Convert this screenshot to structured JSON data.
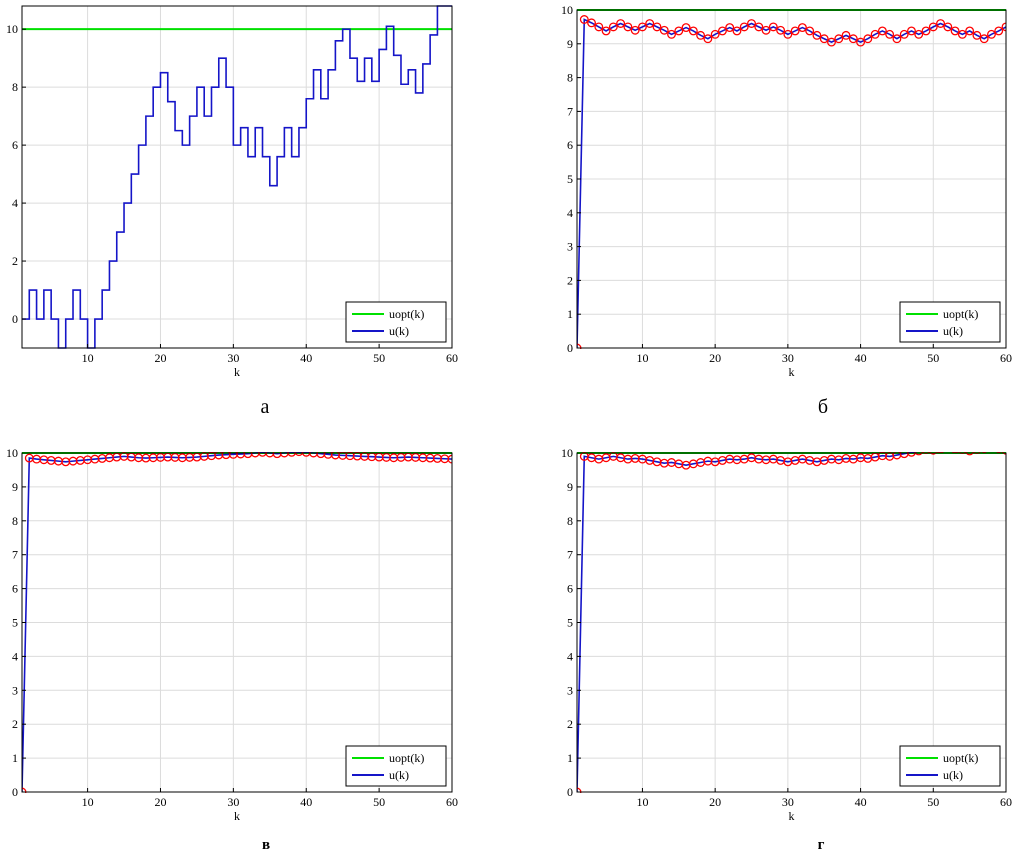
{
  "chart_data": [
    {
      "type": "line",
      "caption": "а",
      "xlabel": "k",
      "ylabel": "",
      "xlim": [
        1,
        60
      ],
      "ylim": [
        -1,
        10.8
      ],
      "xticks": [
        10,
        20,
        30,
        40,
        50,
        60
      ],
      "yticks": [
        0,
        2,
        4,
        6,
        8,
        10
      ],
      "grid": true,
      "legend_position": "bottom-right",
      "legend": [
        "uopt(k)",
        "u(k)"
      ],
      "series": [
        {
          "name": "uopt(k)",
          "color": "#00e000",
          "style": "line",
          "y": [
            10,
            10
          ],
          "x": [
            1,
            60
          ]
        },
        {
          "name": "u(k)",
          "color": "#1515c8",
          "style": "stairs",
          "x": [
            1,
            2,
            3,
            4,
            5,
            6,
            7,
            8,
            9,
            10,
            11,
            12,
            13,
            14,
            15,
            16,
            17,
            18,
            19,
            20,
            21,
            22,
            23,
            24,
            25,
            26,
            27,
            28,
            29,
            30,
            31,
            32,
            33,
            34,
            35,
            36,
            37,
            38,
            39,
            40,
            41,
            42,
            43,
            44,
            45,
            46,
            47,
            48,
            49,
            50,
            51,
            52,
            53,
            54,
            55,
            56,
            57,
            58,
            59,
            60
          ],
          "y": [
            0,
            1,
            0,
            1,
            0,
            -1,
            0,
            1,
            0,
            -1,
            0,
            1,
            2,
            3,
            4,
            5,
            6,
            7,
            8,
            8.5,
            7.5,
            6.5,
            6,
            7,
            8,
            7,
            8,
            9,
            8,
            6,
            6.6,
            5.6,
            6.6,
            5.6,
            4.6,
            5.6,
            6.6,
            5.6,
            6.6,
            7.6,
            8.6,
            7.6,
            8.6,
            9.6,
            10,
            9,
            8.2,
            9,
            8.2,
            9.3,
            10.1,
            9.1,
            8.1,
            8.6,
            7.8,
            8.8,
            9.8,
            10.8,
            10.8,
            10.8
          ]
        }
      ]
    },
    {
      "type": "line",
      "caption": "б",
      "xlabel": "k",
      "ylabel": "",
      "xlim": [
        1,
        60
      ],
      "ylim": [
        0,
        10
      ],
      "xticks": [
        10,
        20,
        30,
        40,
        50,
        60
      ],
      "yticks": [
        0,
        1,
        2,
        3,
        4,
        5,
        6,
        7,
        8,
        9,
        10
      ],
      "grid": true,
      "legend_position": "bottom-right",
      "legend": [
        "uopt(k)",
        "u(k)"
      ],
      "series": [
        {
          "name": "uopt(k)",
          "color": "#00e000",
          "style": "line",
          "x": [
            1,
            60
          ],
          "y": [
            10,
            10
          ]
        },
        {
          "name": "u(k)",
          "color": "#1515c8",
          "style": "line",
          "markers": "circle",
          "marker_color": "#ff0000",
          "x": [
            1,
            2,
            3,
            4,
            5,
            6,
            7,
            8,
            9,
            10,
            11,
            12,
            13,
            14,
            15,
            16,
            17,
            18,
            19,
            20,
            21,
            22,
            23,
            24,
            25,
            26,
            27,
            28,
            29,
            30,
            31,
            32,
            33,
            34,
            35,
            36,
            37,
            38,
            39,
            40,
            41,
            42,
            43,
            44,
            45,
            46,
            47,
            48,
            49,
            50,
            51,
            52,
            53,
            54,
            55,
            56,
            57,
            58,
            59,
            60
          ],
          "y": [
            0,
            9.72,
            9.62,
            9.5,
            9.38,
            9.5,
            9.6,
            9.5,
            9.4,
            9.5,
            9.6,
            9.5,
            9.4,
            9.28,
            9.38,
            9.48,
            9.38,
            9.25,
            9.15,
            9.28,
            9.38,
            9.48,
            9.38,
            9.5,
            9.6,
            9.5,
            9.4,
            9.5,
            9.4,
            9.28,
            9.38,
            9.48,
            9.38,
            9.25,
            9.15,
            9.05,
            9.15,
            9.25,
            9.15,
            9.05,
            9.15,
            9.28,
            9.38,
            9.28,
            9.15,
            9.28,
            9.38,
            9.28,
            9.38,
            9.5,
            9.6,
            9.5,
            9.38,
            9.28,
            9.38,
            9.25,
            9.15,
            9.28,
            9.38,
            9.5
          ]
        }
      ]
    },
    {
      "type": "line",
      "caption": "в",
      "xlabel": "k",
      "ylabel": "",
      "xlim": [
        1,
        60
      ],
      "ylim": [
        0,
        10
      ],
      "xticks": [
        10,
        20,
        30,
        40,
        50,
        60
      ],
      "yticks": [
        0,
        1,
        2,
        3,
        4,
        5,
        6,
        7,
        8,
        9,
        10
      ],
      "grid": true,
      "legend_position": "bottom-right",
      "legend": [
        "uopt(k)",
        "u(k)"
      ],
      "series": [
        {
          "name": "uopt(k)",
          "color": "#00e000",
          "style": "line",
          "x": [
            1,
            60
          ],
          "y": [
            10,
            10
          ]
        },
        {
          "name": "u(k)",
          "color": "#1515c8",
          "style": "line",
          "markers": "circle",
          "marker_color": "#ff0000",
          "x": [
            1,
            2,
            3,
            4,
            5,
            6,
            7,
            8,
            9,
            10,
            11,
            12,
            13,
            14,
            15,
            16,
            17,
            18,
            19,
            20,
            21,
            22,
            23,
            24,
            25,
            26,
            27,
            28,
            29,
            30,
            31,
            32,
            33,
            34,
            35,
            36,
            37,
            38,
            39,
            40,
            41,
            42,
            43,
            44,
            45,
            46,
            47,
            48,
            49,
            50,
            51,
            52,
            53,
            54,
            55,
            56,
            57,
            58,
            59,
            60
          ],
          "y": [
            0,
            9.85,
            9.82,
            9.8,
            9.78,
            9.76,
            9.74,
            9.76,
            9.78,
            9.8,
            9.82,
            9.84,
            9.86,
            9.88,
            9.9,
            9.88,
            9.86,
            9.85,
            9.86,
            9.87,
            9.88,
            9.87,
            9.86,
            9.87,
            9.88,
            9.9,
            9.92,
            9.94,
            9.95,
            9.96,
            9.97,
            9.98,
            10.0,
            10.02,
            10.0,
            9.98,
            10.0,
            10.02,
            10.04,
            10.02,
            10.0,
            9.98,
            9.96,
            9.94,
            9.93,
            9.92,
            9.91,
            9.9,
            9.89,
            9.88,
            9.87,
            9.86,
            9.87,
            9.88,
            9.87,
            9.86,
            9.85,
            9.84,
            9.83,
            9.82
          ]
        }
      ]
    },
    {
      "type": "line",
      "caption": "г",
      "xlabel": "k",
      "ylabel": "",
      "xlim": [
        1,
        60
      ],
      "ylim": [
        0,
        10
      ],
      "xticks": [
        10,
        20,
        30,
        40,
        50,
        60
      ],
      "yticks": [
        0,
        1,
        2,
        3,
        4,
        5,
        6,
        7,
        8,
        9,
        10
      ],
      "grid": true,
      "legend_position": "bottom-right",
      "legend": [
        "uopt(k)",
        "u(k)"
      ],
      "series": [
        {
          "name": "uopt(k)",
          "color": "#00e000",
          "style": "line",
          "x": [
            1,
            60
          ],
          "y": [
            10,
            10
          ]
        },
        {
          "name": "u(k)",
          "color": "#1515c8",
          "style": "line",
          "markers": "circle",
          "marker_color": "#ff0000",
          "x": [
            1,
            2,
            3,
            4,
            5,
            6,
            7,
            8,
            9,
            10,
            11,
            12,
            13,
            14,
            15,
            16,
            17,
            18,
            19,
            20,
            21,
            22,
            23,
            24,
            25,
            26,
            27,
            28,
            29,
            30,
            31,
            32,
            33,
            34,
            35,
            36,
            37,
            38,
            39,
            40,
            41,
            42,
            43,
            44,
            45,
            46,
            47,
            48,
            49,
            50,
            51,
            52,
            53,
            54,
            55,
            56,
            57,
            58,
            59,
            60
          ],
          "y": [
            0,
            9.9,
            9.86,
            9.82,
            9.86,
            9.9,
            9.86,
            9.82,
            9.84,
            9.82,
            9.78,
            9.74,
            9.7,
            9.72,
            9.68,
            9.64,
            9.68,
            9.72,
            9.76,
            9.74,
            9.78,
            9.82,
            9.8,
            9.82,
            9.86,
            9.82,
            9.8,
            9.82,
            9.78,
            9.74,
            9.78,
            9.82,
            9.78,
            9.74,
            9.78,
            9.82,
            9.8,
            9.84,
            9.82,
            9.86,
            9.84,
            9.88,
            9.92,
            9.9,
            9.94,
            9.98,
            10.02,
            10.06,
            10.1,
            10.08,
            10.12,
            10.16,
            10.12,
            10.1,
            10.06,
            10.1,
            10.14,
            10.18,
            10.14,
            10.08
          ]
        }
      ]
    }
  ],
  "captions": [
    "а",
    "б",
    "в",
    "г"
  ]
}
